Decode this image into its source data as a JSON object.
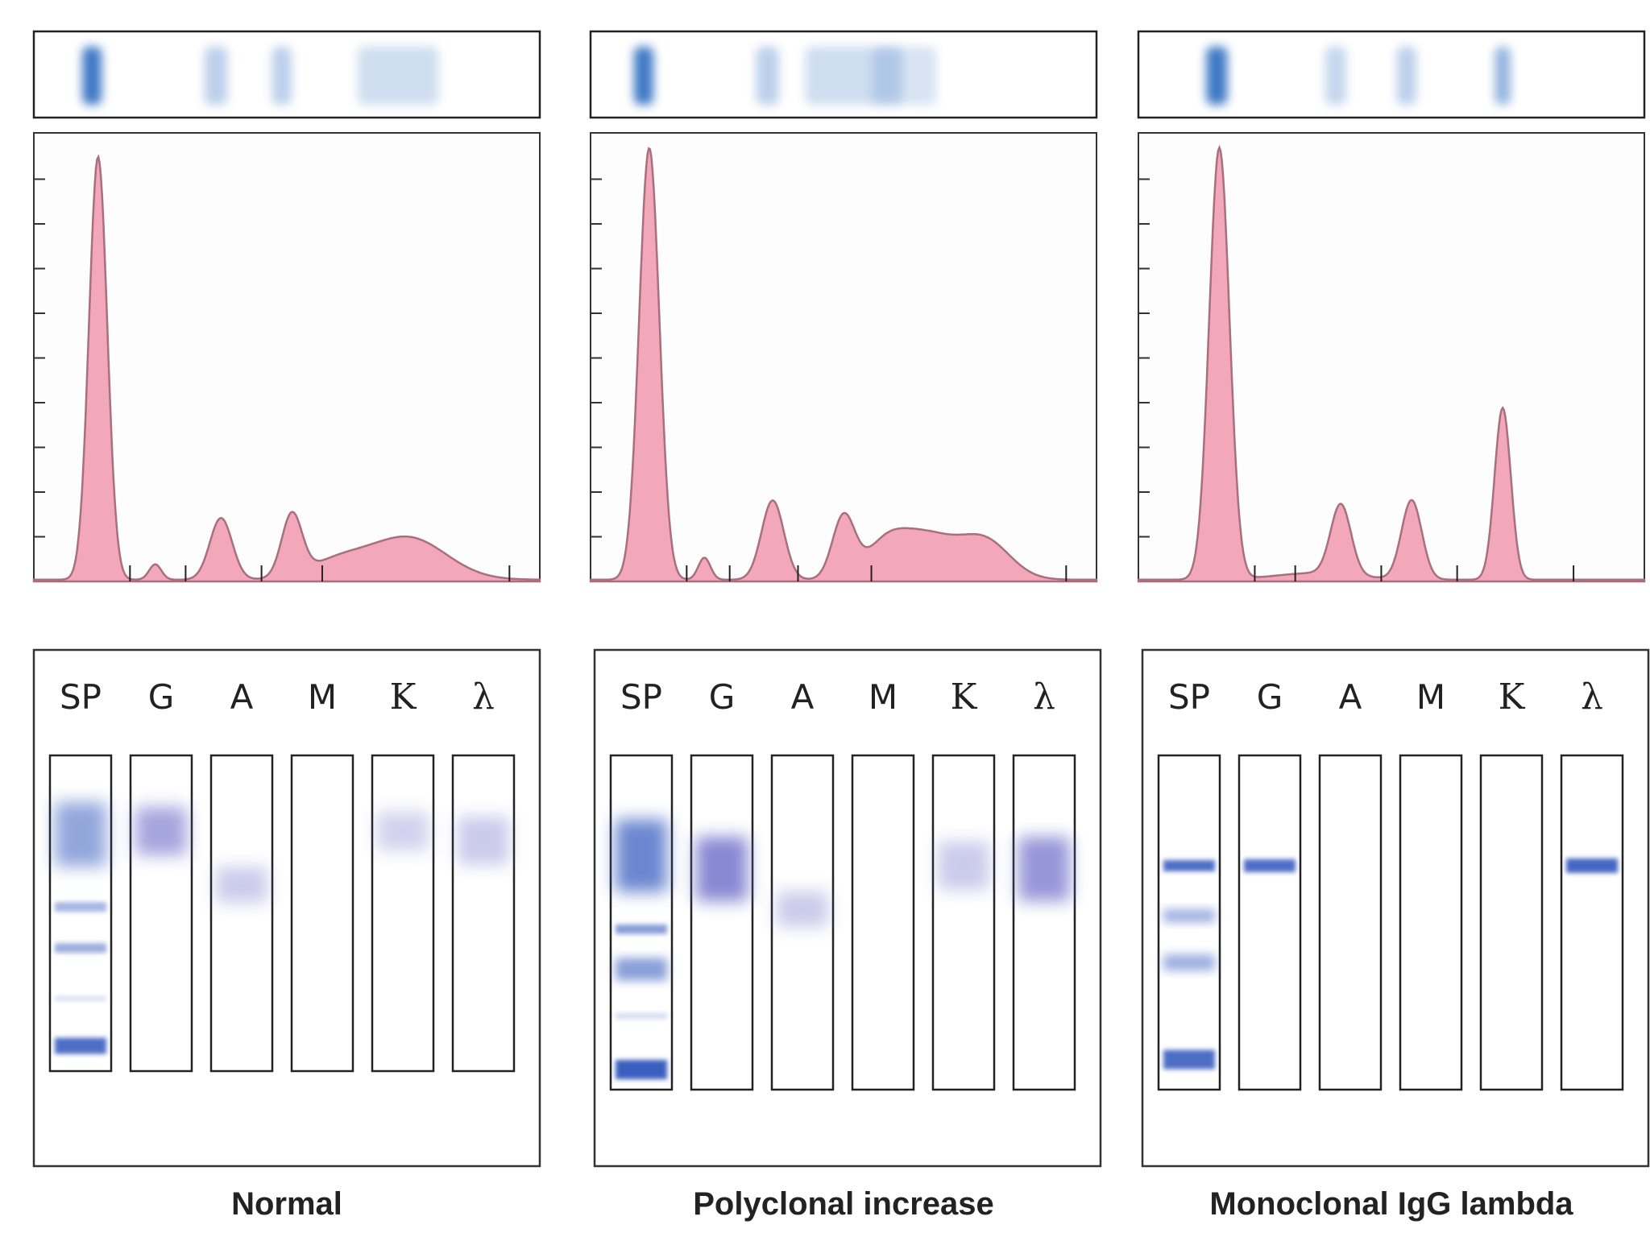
{
  "panels": [
    {
      "caption": "Normal",
      "lanes": [
        "SP",
        "G",
        "A",
        "M",
        "K",
        "λ"
      ]
    },
    {
      "caption": "Polyclonal increase",
      "lanes": [
        "SP",
        "G",
        "A",
        "M",
        "K",
        "λ"
      ]
    },
    {
      "caption": "Monoclonal IgG lambda",
      "lanes": [
        "SP",
        "G",
        "A",
        "M",
        "K",
        "λ"
      ]
    }
  ]
}
